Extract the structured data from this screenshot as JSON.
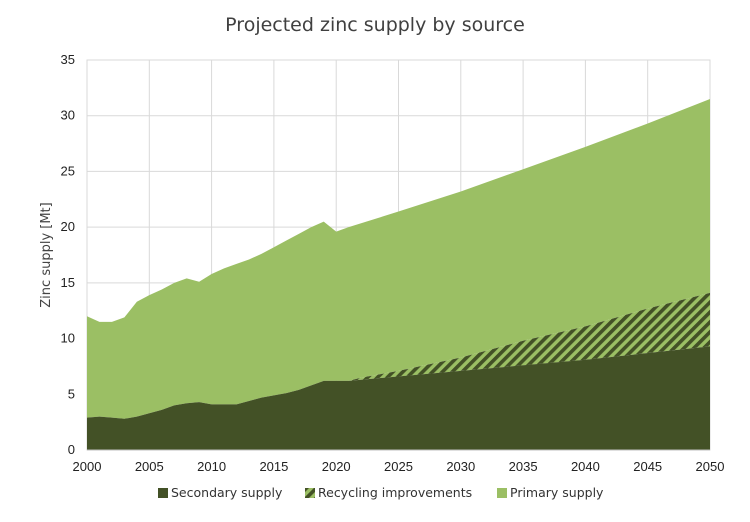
{
  "chart_data": {
    "type": "area",
    "title": "Projected zinc supply by source",
    "xlabel": "",
    "ylabel": "Zinc supply [Mt]",
    "xlim": [
      2000,
      2050
    ],
    "ylim": [
      0,
      35
    ],
    "x_ticks": [
      "2000",
      "2005",
      "2010",
      "2015",
      "2020",
      "2025",
      "2030",
      "2035",
      "2040",
      "2045",
      "2050"
    ],
    "y_ticks": [
      "0",
      "5",
      "10",
      "15",
      "20",
      "25",
      "30",
      "35"
    ],
    "grid": true,
    "stacked": true,
    "legend_position": "bottom",
    "series": [
      {
        "name": "Secondary supply",
        "color": "#435126",
        "pattern": "solid",
        "points": [
          [
            2000,
            2.9
          ],
          [
            2001,
            3.0
          ],
          [
            2002,
            2.9
          ],
          [
            2003,
            2.8
          ],
          [
            2004,
            3.0
          ],
          [
            2005,
            3.3
          ],
          [
            2006,
            3.6
          ],
          [
            2007,
            4.0
          ],
          [
            2008,
            4.2
          ],
          [
            2009,
            4.3
          ],
          [
            2010,
            4.1
          ],
          [
            2011,
            4.1
          ],
          [
            2012,
            4.1
          ],
          [
            2013,
            4.4
          ],
          [
            2014,
            4.7
          ],
          [
            2015,
            4.9
          ],
          [
            2016,
            5.1
          ],
          [
            2017,
            5.4
          ],
          [
            2018,
            5.8
          ],
          [
            2019,
            6.2
          ],
          [
            2020,
            6.2
          ],
          [
            2021,
            6.2
          ],
          [
            2022,
            6.3
          ],
          [
            2030,
            7.1
          ],
          [
            2040,
            8.1
          ],
          [
            2050,
            9.3
          ]
        ]
      },
      {
        "name": "Recycling improvements",
        "color": "#435126",
        "pattern": "hatched",
        "points": [
          [
            2021,
            0.0
          ],
          [
            2022,
            0.2
          ],
          [
            2025,
            0.5
          ],
          [
            2030,
            1.2
          ],
          [
            2035,
            2.2
          ],
          [
            2040,
            3.0
          ],
          [
            2045,
            4.0
          ],
          [
            2050,
            4.8
          ]
        ]
      },
      {
        "name": "Primary supply",
        "color": "#9bbf64",
        "pattern": "solid",
        "total_points": [
          [
            2000,
            12.0
          ],
          [
            2001,
            11.5
          ],
          [
            2002,
            11.5
          ],
          [
            2003,
            11.9
          ],
          [
            2004,
            13.3
          ],
          [
            2005,
            13.9
          ],
          [
            2006,
            14.4
          ],
          [
            2007,
            15.0
          ],
          [
            2008,
            15.4
          ],
          [
            2009,
            15.1
          ],
          [
            2010,
            15.8
          ],
          [
            2011,
            16.3
          ],
          [
            2012,
            16.7
          ],
          [
            2013,
            17.1
          ],
          [
            2014,
            17.6
          ],
          [
            2015,
            18.2
          ],
          [
            2016,
            18.8
          ],
          [
            2017,
            19.4
          ],
          [
            2018,
            20.0
          ],
          [
            2019,
            20.5
          ],
          [
            2020,
            19.6
          ],
          [
            2021,
            20.0
          ],
          [
            2025,
            21.4
          ],
          [
            2030,
            23.2
          ],
          [
            2035,
            25.2
          ],
          [
            2040,
            27.2
          ],
          [
            2045,
            29.3
          ],
          [
            2050,
            31.5
          ]
        ]
      }
    ]
  }
}
